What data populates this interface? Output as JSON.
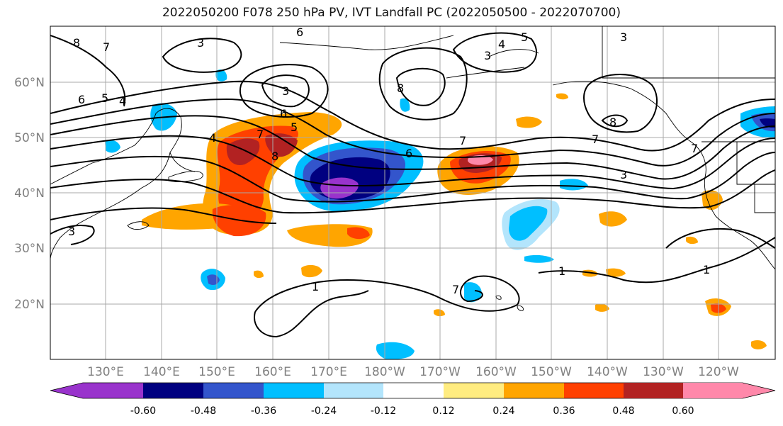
{
  "title": "2022050200 F078 250 hPa PV, IVT Landfall PC (2022050500 - 2022070700)",
  "lat_labels": [
    "60°N",
    "50°N",
    "40°N",
    "30°N",
    "20°N"
  ],
  "lon_labels": [
    "130°E",
    "140°E",
    "150°E",
    "160°E",
    "170°E",
    "180°W",
    "170°W",
    "160°W",
    "150°W",
    "140°W",
    "130°W",
    "120°W"
  ],
  "colorbar": {
    "colors": [
      "#9933cc",
      "#000080",
      "#3355cc",
      "#00bfff",
      "#b3e5fc",
      "#ffffff",
      "#ffec80",
      "#ffa500",
      "#ff4000",
      "#b22222",
      "#ff88aa"
    ],
    "tick_labels": [
      "-0.60",
      "-0.48",
      "-0.36",
      "-0.24",
      "-0.12",
      "0.12",
      "0.24",
      "0.36",
      "0.48",
      "0.60"
    ]
  },
  "contour_labels": [
    "8",
    "7",
    "3",
    "6",
    "5",
    "4",
    "6",
    "5",
    "4",
    "3",
    "8",
    "7",
    "6",
    "5",
    "4",
    "3",
    "8",
    "7",
    "6",
    "3",
    "8",
    "7",
    "7",
    "3",
    "1",
    "1",
    "7",
    "1",
    "3"
  ]
}
